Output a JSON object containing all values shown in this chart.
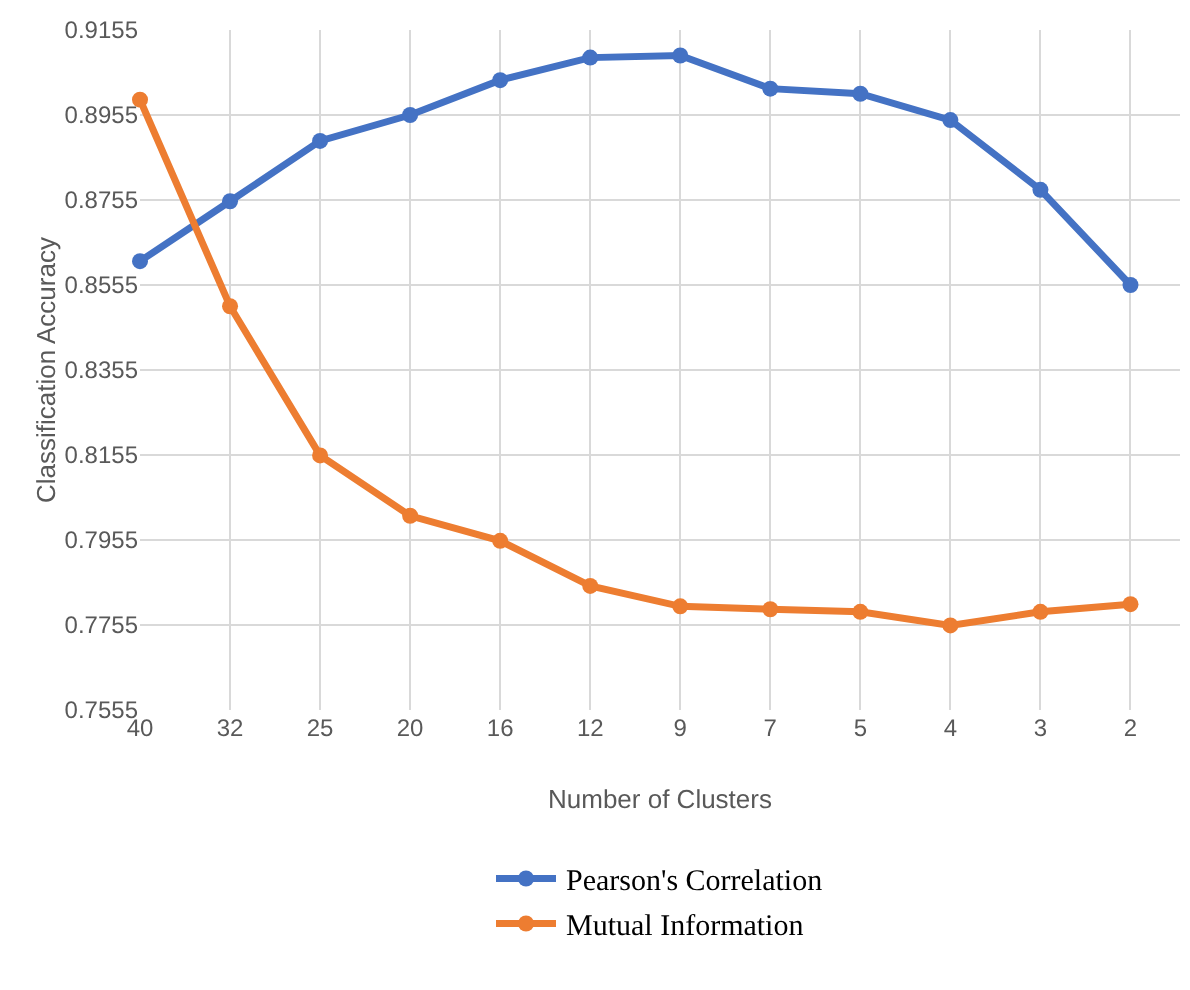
{
  "chart_data": {
    "type": "line",
    "xlabel": "Number of Clusters",
    "ylabel": "Classification Accuracy",
    "categories": [
      "40",
      "32",
      "25",
      "20",
      "16",
      "12",
      "9",
      "7",
      "5",
      "4",
      "3",
      "2"
    ],
    "series": [
      {
        "name": "Pearson's Correlation",
        "color": "#4472c4",
        "values": [
          0.8611,
          0.8752,
          0.8894,
          0.8955,
          0.9037,
          0.909,
          0.9095,
          0.9017,
          0.9005,
          0.8943,
          0.8779,
          0.8555
        ]
      },
      {
        "name": "Mutual Information",
        "color": "#ed7d31",
        "values": [
          0.8991,
          0.8505,
          0.8154,
          0.8012,
          0.7953,
          0.7847,
          0.7799,
          0.7792,
          0.7786,
          0.7754,
          0.7786,
          0.7804
        ]
      }
    ],
    "ylim": [
      0.7555,
      0.9155
    ],
    "yticks": [
      0.7555,
      0.7755,
      0.7955,
      0.8155,
      0.8355,
      0.8555,
      0.8755,
      0.8955,
      0.9155
    ],
    "grid": true,
    "legend": "bottom",
    "marker": "circle",
    "line_style": "solid"
  }
}
